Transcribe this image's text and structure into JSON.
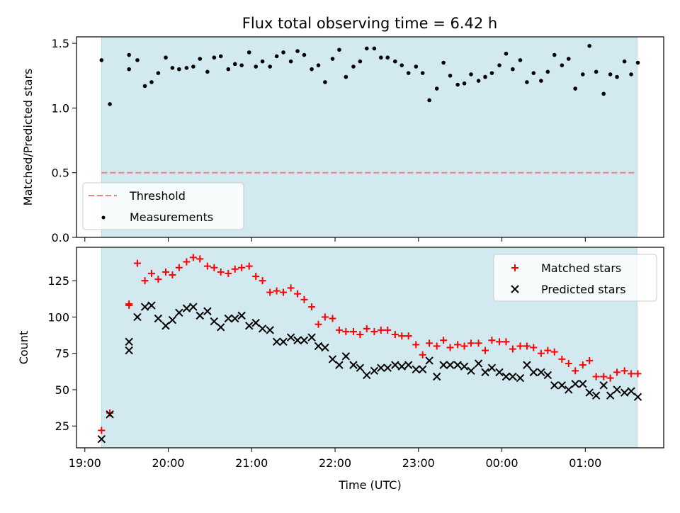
{
  "title": "Flux total observing time = 6.42 h",
  "chart_data": [
    {
      "type": "scatter",
      "ylabel": "Matched/Predicted stars",
      "xlabel": "",
      "xlim": [
        18.9,
        25.94
      ],
      "ylim": [
        0.0,
        1.55
      ],
      "yticks": [
        0.0,
        0.5,
        1.0,
        1.5
      ],
      "ytick_labels": [
        "0.0",
        "0.5",
        "1.0",
        "1.5"
      ],
      "shaded_span": {
        "x": [
          19.2,
          25.62
        ],
        "color": "#d3e9f0"
      },
      "threshold": {
        "name": "Threshold",
        "value": 0.5,
        "color": "#f08080"
      },
      "series": [
        {
          "name": "Measurements",
          "marker": "dot",
          "color": "#000000",
          "x": [
            19.2,
            19.3,
            19.53,
            19.53,
            19.63,
            19.72,
            19.8,
            19.88,
            19.97,
            20.05,
            20.13,
            20.22,
            20.3,
            20.38,
            20.47,
            20.55,
            20.63,
            20.72,
            20.8,
            20.88,
            20.97,
            21.05,
            21.13,
            21.22,
            21.3,
            21.38,
            21.47,
            21.55,
            21.63,
            21.72,
            21.8,
            21.88,
            21.97,
            22.05,
            22.13,
            22.22,
            22.3,
            22.38,
            22.47,
            22.55,
            22.63,
            22.72,
            22.8,
            22.88,
            22.97,
            23.05,
            23.13,
            23.22,
            23.3,
            23.38,
            23.47,
            23.55,
            23.63,
            23.72,
            23.8,
            23.88,
            23.97,
            24.05,
            24.13,
            24.22,
            24.3,
            24.38,
            24.47,
            24.55,
            24.63,
            24.72,
            24.8,
            24.88,
            24.97,
            25.05,
            25.13,
            25.22,
            25.3,
            25.38,
            25.47,
            25.55,
            25.63
          ],
          "y": [
            1.37,
            1.03,
            1.41,
            1.3,
            1.37,
            1.17,
            1.2,
            1.27,
            1.39,
            1.31,
            1.3,
            1.31,
            1.32,
            1.38,
            1.28,
            1.39,
            1.4,
            1.3,
            1.34,
            1.33,
            1.43,
            1.32,
            1.36,
            1.32,
            1.4,
            1.43,
            1.36,
            1.44,
            1.41,
            1.3,
            1.33,
            1.2,
            1.38,
            1.45,
            1.24,
            1.32,
            1.36,
            1.46,
            1.46,
            1.39,
            1.39,
            1.36,
            1.33,
            1.27,
            1.32,
            1.27,
            1.06,
            1.15,
            1.35,
            1.25,
            1.18,
            1.19,
            1.26,
            1.21,
            1.24,
            1.27,
            1.33,
            1.42,
            1.3,
            1.37,
            1.2,
            1.27,
            1.21,
            1.28,
            1.41,
            1.33,
            1.38,
            1.15,
            1.26,
            1.48,
            1.28,
            1.11,
            1.26,
            1.24,
            1.36,
            1.26,
            1.35
          ]
        }
      ],
      "legend": {
        "placement": "lower-left"
      }
    },
    {
      "type": "scatter",
      "ylabel": "Count",
      "xlabel": "Time (UTC)",
      "xlim": [
        18.9,
        25.94
      ],
      "ylim": [
        10,
        148
      ],
      "yticks": [
        25,
        50,
        75,
        100,
        125
      ],
      "ytick_labels": [
        "25",
        "50",
        "75",
        "100",
        "125"
      ],
      "xticks": [
        19,
        20,
        21,
        22,
        23,
        24,
        25
      ],
      "xtick_labels": [
        "19:00",
        "20:00",
        "21:00",
        "22:00",
        "23:00",
        "00:00",
        "01:00"
      ],
      "shaded_span": {
        "x": [
          19.2,
          25.62
        ],
        "color": "#d3e9f0"
      },
      "x": [
        19.2,
        19.3,
        19.53,
        19.53,
        19.63,
        19.72,
        19.8,
        19.88,
        19.97,
        20.05,
        20.13,
        20.22,
        20.3,
        20.38,
        20.47,
        20.55,
        20.63,
        20.72,
        20.8,
        20.88,
        20.97,
        21.05,
        21.13,
        21.22,
        21.3,
        21.38,
        21.47,
        21.55,
        21.63,
        21.72,
        21.8,
        21.88,
        21.97,
        22.05,
        22.13,
        22.22,
        22.3,
        22.38,
        22.47,
        22.55,
        22.63,
        22.72,
        22.8,
        22.88,
        22.97,
        23.05,
        23.13,
        23.22,
        23.3,
        23.38,
        23.47,
        23.55,
        23.63,
        23.72,
        23.8,
        23.88,
        23.97,
        24.05,
        24.13,
        24.22,
        24.3,
        24.38,
        24.47,
        24.55,
        24.63,
        24.72,
        24.8,
        24.88,
        24.97,
        25.05,
        25.13,
        25.22,
        25.3,
        25.38,
        25.47,
        25.55,
        25.63
      ],
      "series": [
        {
          "name": "Matched stars",
          "marker": "plus",
          "color": "#ff0000",
          "values": [
            22,
            34,
            108,
            109,
            137,
            125,
            130,
            126,
            131,
            129,
            134,
            138,
            141,
            140,
            135,
            134,
            131,
            130,
            133,
            134,
            135,
            128,
            125,
            117,
            118,
            117,
            120,
            116,
            112,
            107,
            95,
            100,
            99,
            91,
            90,
            90,
            88,
            92,
            90,
            91,
            91,
            88,
            87,
            87,
            81,
            74,
            82,
            80,
            84,
            79,
            81,
            80,
            82,
            82,
            77,
            84,
            83,
            83,
            78,
            80,
            80,
            79,
            75,
            77,
            76,
            71,
            68,
            63,
            67,
            70,
            59,
            59,
            58,
            62,
            63,
            61,
            61
          ]
        },
        {
          "name": "Predicted stars",
          "marker": "x",
          "color": "#000000",
          "values": [
            16,
            33,
            83,
            77,
            100,
            107,
            108,
            99,
            94,
            98,
            103,
            106,
            107,
            101,
            104,
            97,
            93,
            99,
            99,
            101,
            94,
            96,
            92,
            91,
            83,
            83,
            86,
            84,
            84,
            86,
            80,
            79,
            71,
            67,
            73,
            67,
            65,
            60,
            63,
            65,
            65,
            67,
            66,
            67,
            64,
            64,
            70,
            59,
            67,
            67,
            67,
            66,
            63,
            68,
            62,
            65,
            62,
            59,
            59,
            58,
            67,
            62,
            62,
            60,
            53,
            53,
            50,
            54,
            54,
            48,
            46,
            53,
            46,
            50,
            48,
            49,
            45
          ]
        }
      ],
      "legend": {
        "placement": "top-right"
      }
    }
  ]
}
